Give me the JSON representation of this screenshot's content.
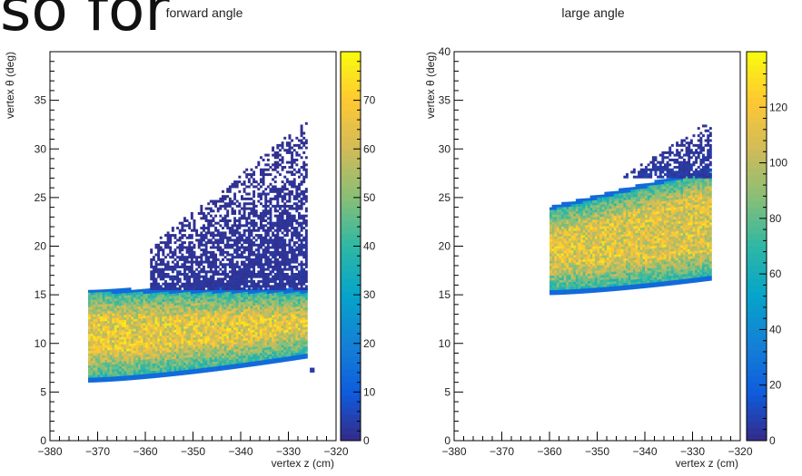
{
  "overlay_text": "so for",
  "chart_data": [
    {
      "type": "heatmap",
      "title": "forward angle",
      "xlabel": "vertex z (cm)",
      "ylabel": "vertex θ (deg)",
      "xlim": [
        -380,
        -320
      ],
      "ylim": [
        0,
        40
      ],
      "xticks": [
        "−380",
        "−370",
        "−360",
        "−350",
        "−340",
        "−330",
        "−320"
      ],
      "yticks": [
        "0",
        "5",
        "10",
        "15",
        "20",
        "25",
        "30",
        "35"
      ],
      "zlim": [
        0,
        80
      ],
      "zticks": [
        "0",
        "10",
        "20",
        "30",
        "40",
        "50",
        "60",
        "70"
      ],
      "grid": false,
      "colormap": [
        "#352a87",
        "#0f5cdd",
        "#1481d6",
        "#06a4ca",
        "#2eb7a4",
        "#87bf77",
        "#d1bb59",
        "#fec832",
        "#f9fb0e"
      ],
      "region": {
        "dense_band": {
          "z_range": [
            -372,
            -326
          ],
          "theta_low_at_zmin": 6,
          "theta_low_at_zmax": 8.5,
          "theta_high": 15.5,
          "peak_counts": 70
        },
        "sparse_band": {
          "z_range": [
            -359,
            -326
          ],
          "theta_low": 15.5,
          "theta_high_at_zmin": 20,
          "theta_high_at_zmax": 33,
          "typical_counts": 2
        },
        "isolated_bins": [
          {
            "z": -325.5,
            "theta": 7,
            "counts": 3
          }
        ]
      }
    },
    {
      "type": "heatmap",
      "title": "large angle",
      "xlabel": "vertex z (cm)",
      "ylabel": "vertex θ (deg)",
      "xlim": [
        -380,
        -320
      ],
      "ylim": [
        0,
        40
      ],
      "xticks": [
        "−380",
        "−370",
        "−360",
        "−350",
        "−340",
        "−330",
        "−320"
      ],
      "yticks": [
        "0",
        "5",
        "10",
        "15",
        "20",
        "25",
        "30",
        "35",
        "40"
      ],
      "zlim": [
        0,
        140
      ],
      "zticks": [
        "0",
        "20",
        "40",
        "60",
        "80",
        "100",
        "120"
      ],
      "grid": false,
      "colormap": [
        "#352a87",
        "#0f5cdd",
        "#1481d6",
        "#06a4ca",
        "#2eb7a4",
        "#87bf77",
        "#d1bb59",
        "#fec832",
        "#f9fb0e"
      ],
      "region": {
        "dense_band": {
          "z_range": [
            -360,
            -326
          ],
          "theta_low_at_zmin": 15,
          "theta_low_at_zmax": 16.5,
          "theta_high_at_zmin": 24,
          "theta_high_at_zmax": 28,
          "peak_counts": 120
        },
        "sparse_band": {
          "z_range": [
            -345,
            -326
          ],
          "theta_low": 27,
          "theta_high_at_zmin": 27,
          "theta_high_at_zmax": 33,
          "typical_counts": 5
        }
      }
    }
  ]
}
